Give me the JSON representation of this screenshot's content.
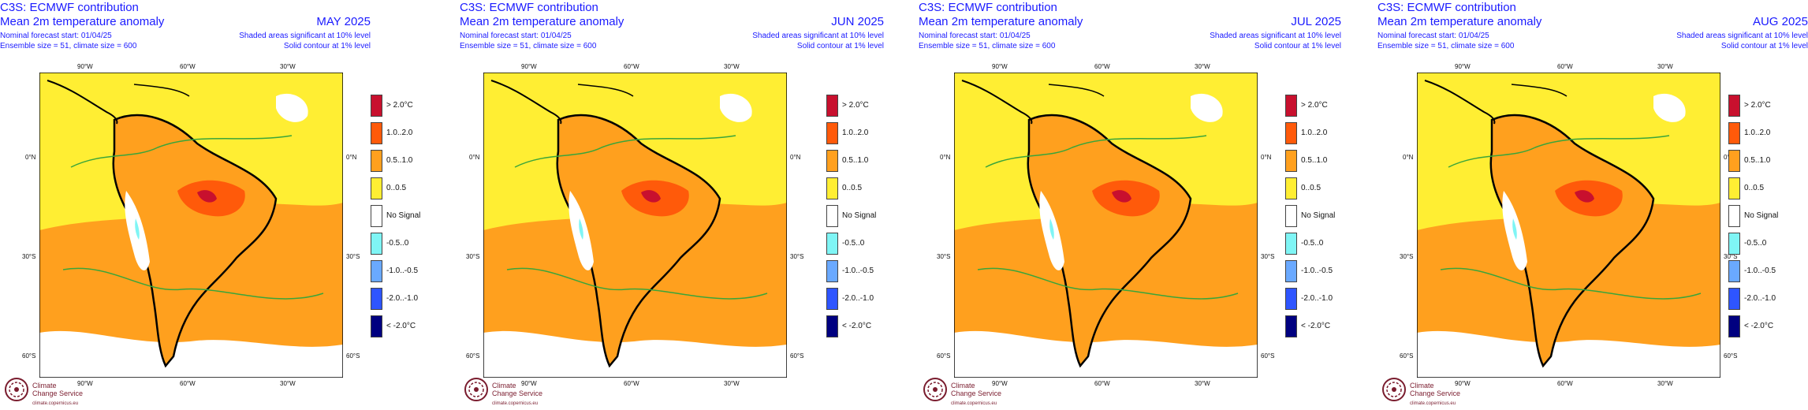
{
  "header": {
    "title": "C3S: ECMWF contribution",
    "subtitle": "Mean 2m temperature anomaly",
    "forecast_start": "Nominal forecast start: 01/04/25",
    "ensemble": "Ensemble size = 51, climate size = 600",
    "sig_shaded": "Shaded areas significant at 10% level",
    "sig_contour": "Solid contour at 1% level"
  },
  "panels": [
    {
      "month": "MAY 2025"
    },
    {
      "month": "JUN 2025"
    },
    {
      "month": "JUL 2025"
    },
    {
      "month": "AUG 2025"
    }
  ],
  "axes": {
    "lon_labels": [
      "90°W",
      "60°W",
      "30°W"
    ],
    "lat_labels": [
      "0°N",
      "30°S",
      "60°S"
    ]
  },
  "legend": [
    {
      "label": "> 2.0°C",
      "color": "#c8102e"
    },
    {
      "label": "1.0..2.0",
      "color": "#ff5a0a"
    },
    {
      "label": "0.5..1.0",
      "color": "#ffa01e"
    },
    {
      "label": "0..0.5",
      "color": "#ffee33"
    },
    {
      "label": "No Signal",
      "color": "#ffffff"
    },
    {
      "label": "-0.5..0",
      "color": "#7ff5f5"
    },
    {
      "label": "-1.0..-0.5",
      "color": "#6aa9ff"
    },
    {
      "label": "-2.0..-1.0",
      "color": "#2e55ff"
    },
    {
      "label": "< -2.0°C",
      "color": "#000080"
    }
  ],
  "logo": {
    "name_line1": "Climate",
    "name_line2": "Change Service",
    "url": "climate.copernicus.eu"
  }
}
